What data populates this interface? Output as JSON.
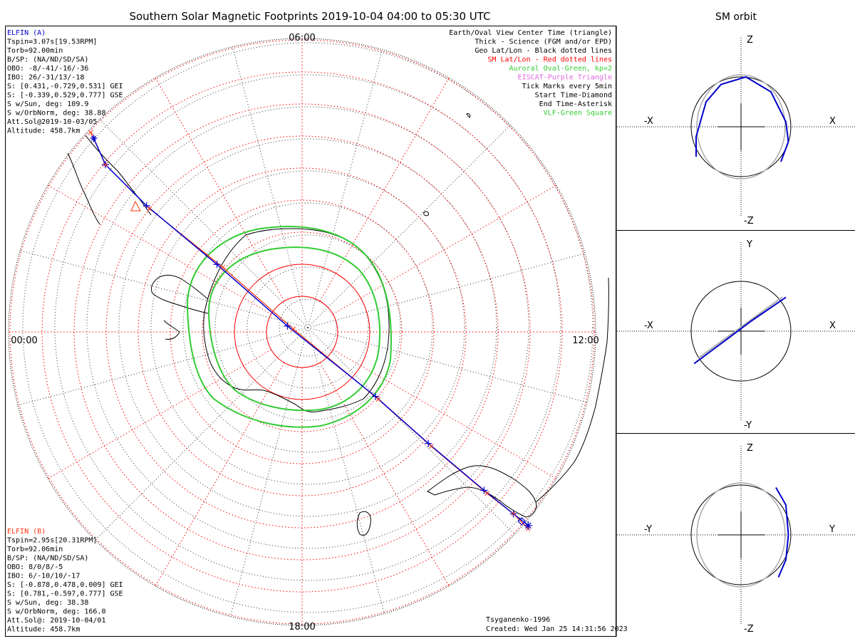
{
  "main_title": "Southern Solar Magnetic Footprints 2019-10-04 04:00 to 05:30 UTC",
  "orbit_title": "SM orbit",
  "mlt_labels": {
    "top": "06:00",
    "left": "00:00",
    "right": "12:00",
    "bottom": "18:00"
  },
  "elfin_a": {
    "name": "ELFIN (A)",
    "lines": [
      "Tspin=3.07s[19.53RPM]",
      "Torb=92.00min",
      "B/SP: (NA/ND/SD/SA)",
      "OBO: -8/-41/-16/-36",
      "IBO: 26/-31/13/-18",
      "S: [0.431,-0.729,0.531] GEI",
      "S: [-0.339,0.529,0.777] GSE",
      "S w/Sun, deg: 109.9",
      "S w/OrbNorm, deg: 38.88",
      "Att.Sol@2019-10-03/05",
      "Altitude: 458.7km"
    ]
  },
  "elfin_b": {
    "name": "ELFIN (B)",
    "lines": [
      "Tspin=2.95s[20.31RPM]",
      "Torb=92.06min",
      "B/SP: (NA/ND/SD/SA)",
      "OBO: 8/0/8/-5",
      "IBO: 6/-10/10/-17",
      "S: [-0.878,0.478,0.009] GEI",
      "S: [0.781,-0.597,0.777] GSE",
      "S w/Sun, deg: 38.38",
      "S w/OrbNorm, deg: 166.0",
      "Att.Sol@: 2019-10-04/01",
      "Altitude: 458.7km"
    ]
  },
  "legend": [
    {
      "text": "Earth/Oval View Center Time (triangle)",
      "color": "#000000"
    },
    {
      "text": "Thick - Science (FGM and/or EPD)",
      "color": "#000000"
    },
    {
      "text": "Geo Lat/Lon - Black dotted lines",
      "color": "#000000"
    },
    {
      "text": "SM Lat/Lon - Red dotted lines",
      "color": "#ff0000"
    },
    {
      "text": "Auroral Oval-Green, kp=2",
      "color": "#33cc33"
    },
    {
      "text": "EISCAT-Purple Triangle",
      "color": "#dd66dd"
    },
    {
      "text": "Tick Marks every 5min",
      "color": "#000000"
    },
    {
      "text": "Start Time-Diamond",
      "color": "#000000"
    },
    {
      "text": "End Time-Asterisk",
      "color": "#000000"
    },
    {
      "text": "VLF-Green Square",
      "color": "#33cc33"
    }
  ],
  "footer": {
    "model": "Tsyganenko-1996",
    "created": "Created: Wed Jan 25 14:31:56 2023"
  },
  "orbit_panels": [
    {
      "top": "Z",
      "bottom": "-Z",
      "left": "-X",
      "right": "X"
    },
    {
      "top": "Y",
      "bottom": "-Y",
      "left": "-X",
      "right": "X"
    },
    {
      "top": "Z",
      "bottom": "-Z",
      "left": "-Y",
      "right": "Y"
    }
  ],
  "colors": {
    "elfin_a": "#0000cc",
    "elfin_b": "#ff3311",
    "sm_grid": "#ff0000",
    "geo_grid": "#000000",
    "oval": "#33cc33",
    "orbit_ref": "#aaaaaa"
  },
  "chart_data": {
    "type": "scatter",
    "projection": "polar (southern hemisphere, SM coordinates)",
    "mlt_ticks": [
      "00:00",
      "06:00",
      "12:00",
      "18:00"
    ],
    "track_a": {
      "name": "ELFIN (A)",
      "x": [
        -0.71,
        -0.67,
        -0.53,
        -0.29,
        -0.05,
        0.25,
        0.43,
        0.62,
        0.72,
        0.77
      ],
      "y": [
        0.66,
        0.57,
        0.43,
        0.23,
        0.02,
        -0.22,
        -0.38,
        -0.54,
        -0.62,
        -0.66
      ]
    },
    "track_b": {
      "name": "ELFIN (B)",
      "x": [
        -0.72,
        -0.67,
        -0.52,
        -0.27,
        -0.03,
        0.26,
        0.44,
        0.63,
        0.72,
        0.77
      ],
      "y": [
        0.68,
        0.57,
        0.42,
        0.22,
        0.01,
        -0.23,
        -0.39,
        -0.55,
        -0.62,
        -0.67
      ]
    },
    "orbit_xz": {
      "a": [
        [
          -0.9,
          -0.6
        ],
        [
          -0.9,
          -0.2
        ],
        [
          -0.7,
          0.5
        ],
        [
          -0.4,
          0.85
        ],
        [
          0.1,
          1.0
        ],
        [
          0.6,
          0.7
        ],
        [
          0.9,
          0.1
        ],
        [
          0.95,
          -0.3
        ],
        [
          0.8,
          -0.7
        ]
      ]
    },
    "orbit_xy": {
      "a": [
        [
          -0.94,
          -0.65
        ],
        [
          -0.4,
          -0.25
        ],
        [
          0.2,
          0.2
        ],
        [
          0.9,
          0.68
        ]
      ]
    },
    "orbit_yz": {
      "a": [
        [
          0.7,
          0.95
        ],
        [
          0.9,
          0.6
        ],
        [
          0.95,
          0.0
        ],
        [
          0.9,
          -0.5
        ],
        [
          0.75,
          -0.85
        ]
      ]
    }
  }
}
